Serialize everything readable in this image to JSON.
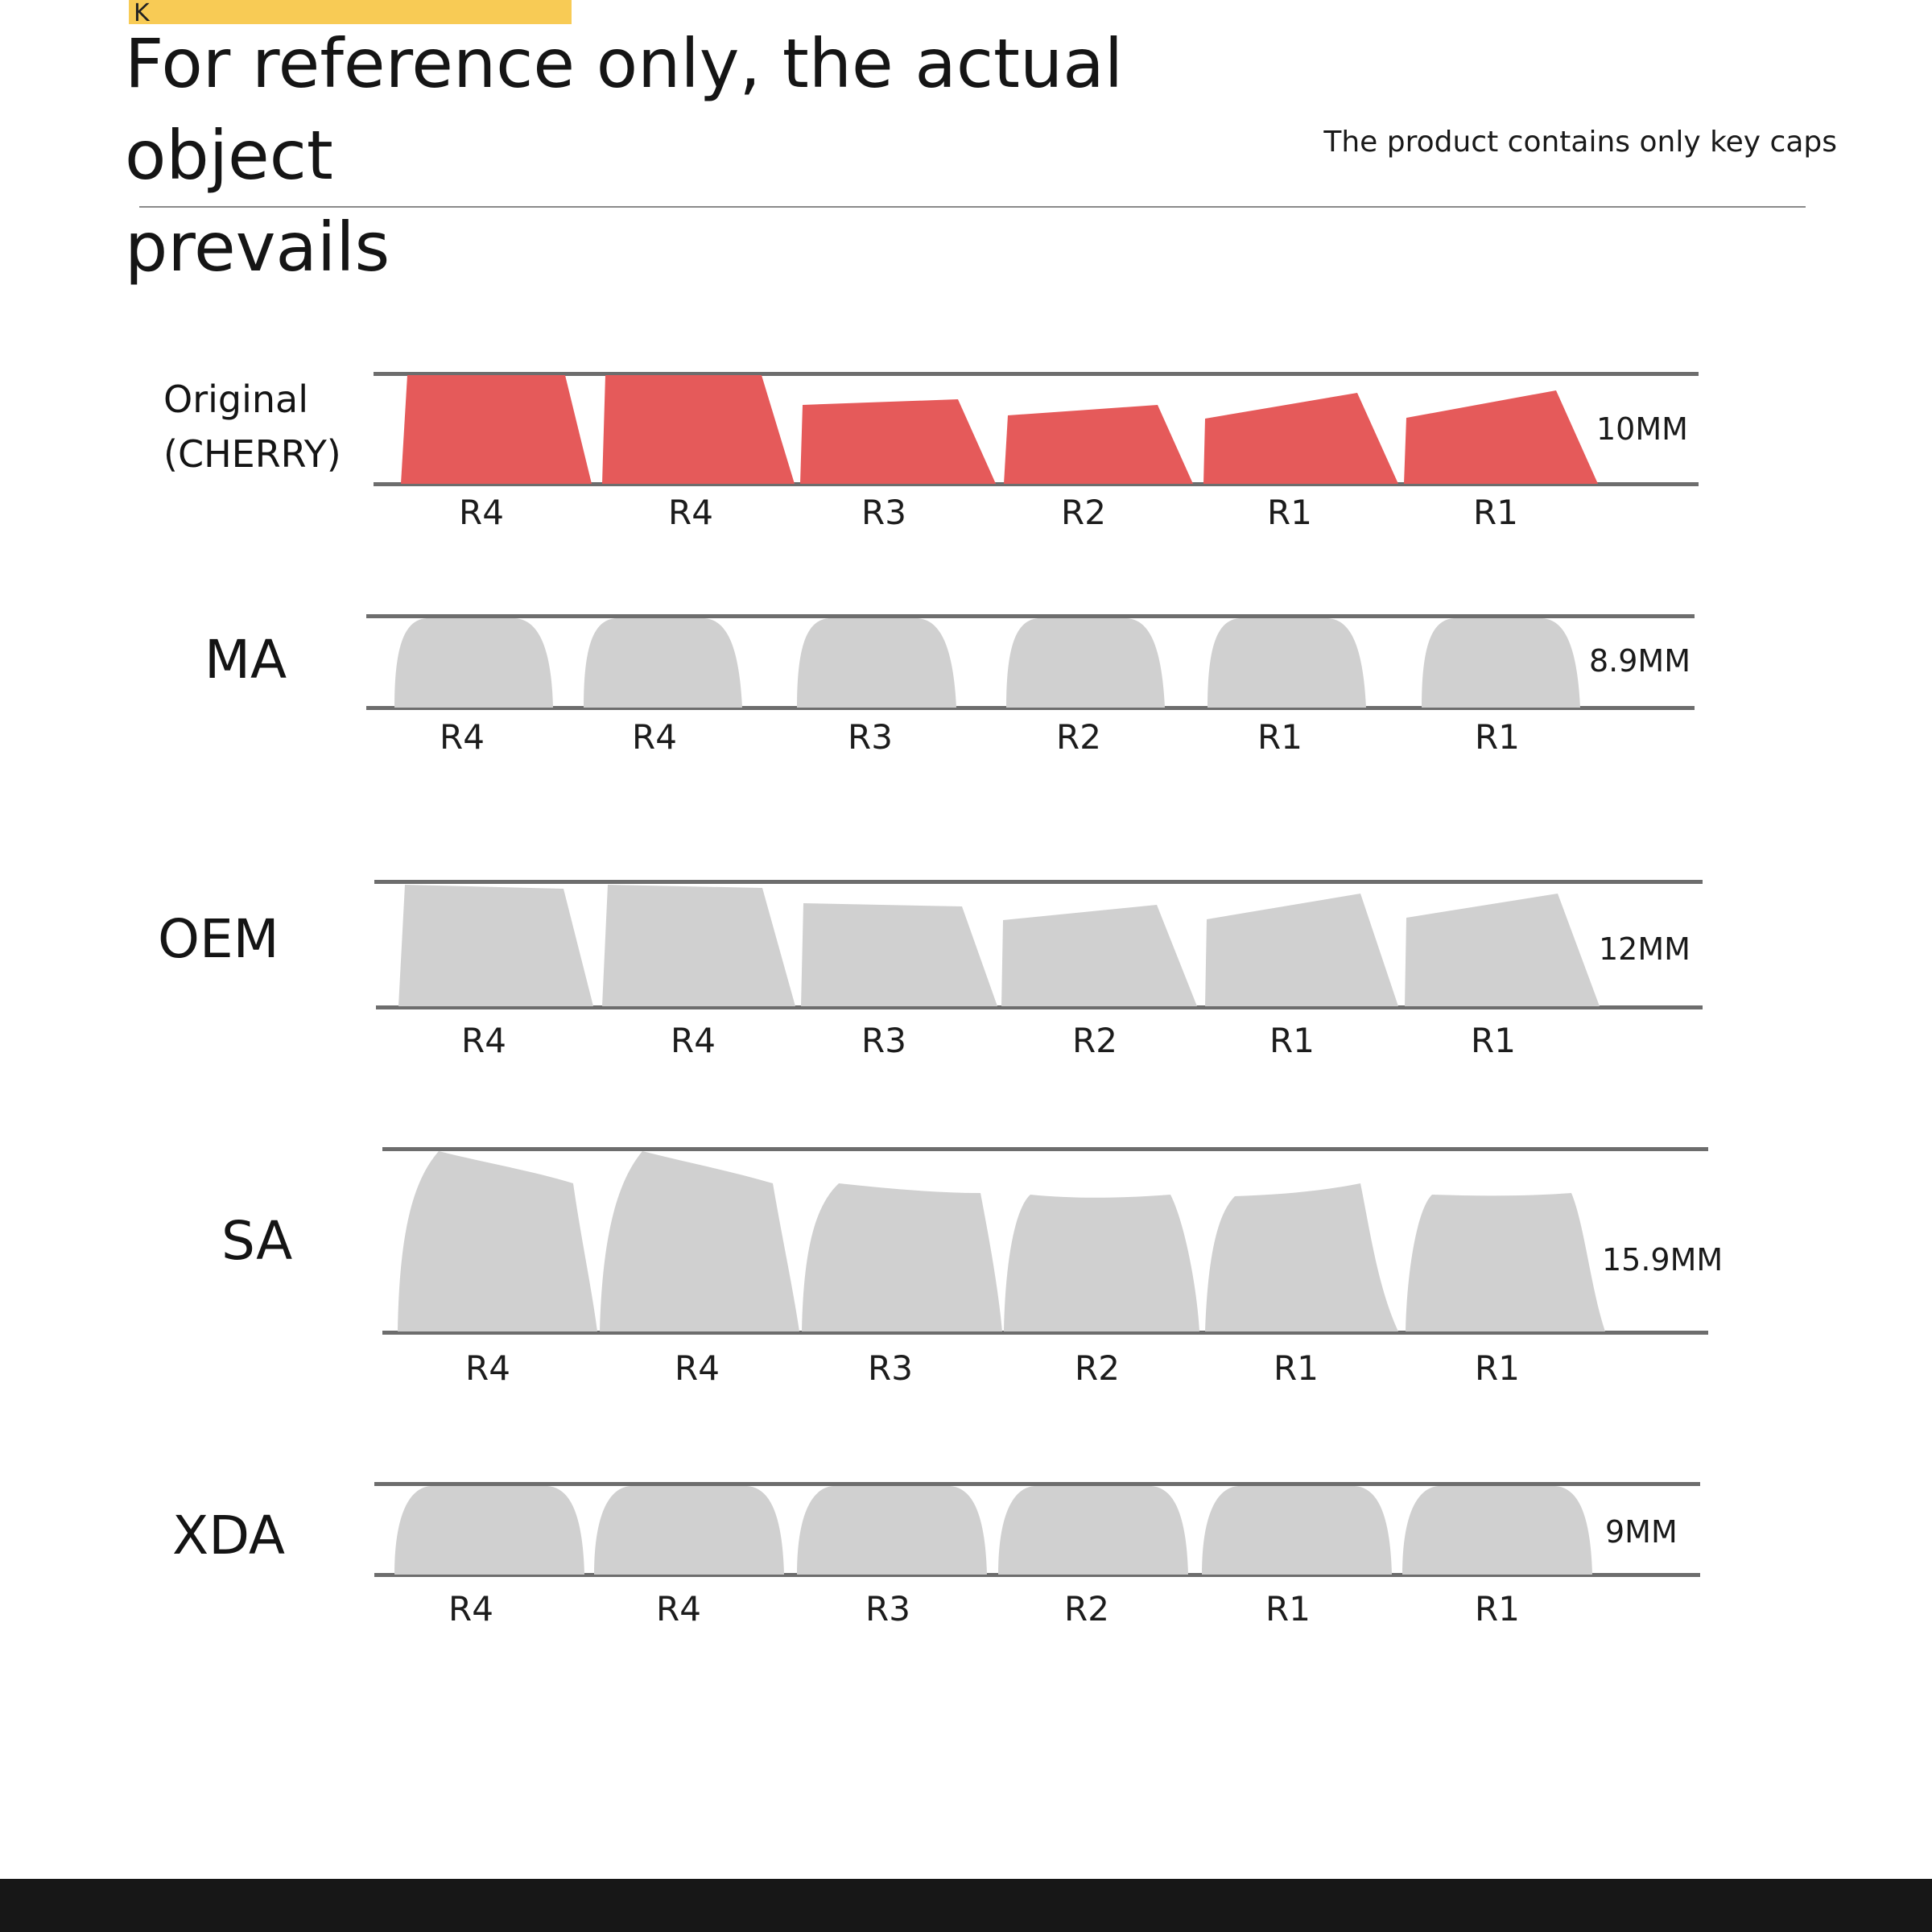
{
  "header": {
    "badge_letter": "K",
    "title_line1": "For reference only, the actual object",
    "title_line2": "prevails",
    "note": "The product contains only key caps"
  },
  "colors": {
    "cherry_cap": "#e55a5a",
    "other_cap": "#d0d0d0",
    "rule": "#6d6d6d",
    "badge": "#f8cb55",
    "footer": "#171717"
  },
  "profiles": [
    {
      "name": "Original\n(CHERRY)",
      "name_line1": "Original",
      "name_line2": "(CHERRY)",
      "height": "10MM",
      "rows": [
        "R4",
        "R4",
        "R3",
        "R2",
        "R1",
        "R1"
      ]
    },
    {
      "name": "MA",
      "height": "8.9MM",
      "rows": [
        "R4",
        "R4",
        "R3",
        "R2",
        "R1",
        "R1"
      ]
    },
    {
      "name": "OEM",
      "height": "12MM",
      "rows": [
        "R4",
        "R4",
        "R3",
        "R2",
        "R1",
        "R1"
      ]
    },
    {
      "name": "SA",
      "height": "15.9MM",
      "rows": [
        "R4",
        "R4",
        "R3",
        "R2",
        "R1",
        "R1"
      ]
    },
    {
      "name": "XDA",
      "height": "9MM",
      "rows": [
        "R4",
        "R4",
        "R3",
        "R2",
        "R1",
        "R1"
      ]
    }
  ]
}
